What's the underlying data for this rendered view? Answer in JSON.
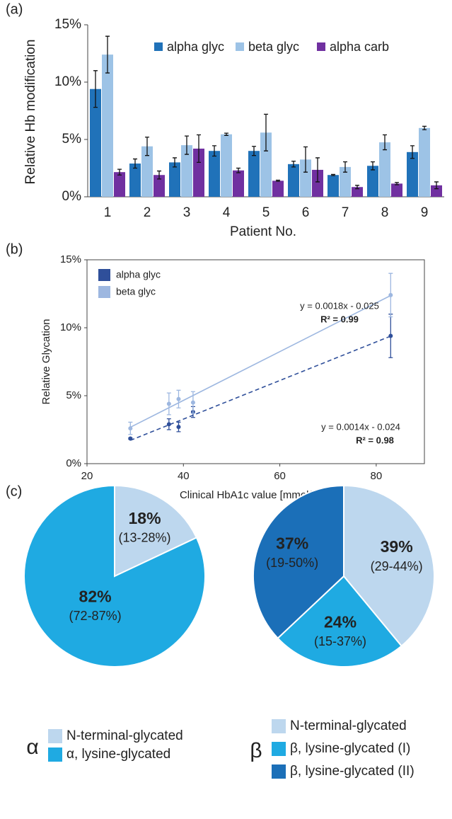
{
  "chart_data": [
    {
      "type": "bar",
      "panel": "(a)",
      "x_label": "Patient No.",
      "y_label": "Relative Hb modification",
      "categories": [
        "1",
        "2",
        "3",
        "4",
        "5",
        "6",
        "7",
        "8",
        "9"
      ],
      "series": [
        {
          "name": "alpha glyc",
          "color": "#2072b9",
          "values": [
            9.4,
            2.9,
            3.0,
            4.0,
            4.0,
            2.85,
            1.9,
            2.7,
            3.9
          ],
          "errors": [
            1.6,
            0.4,
            0.4,
            0.45,
            0.4,
            0.25,
            0.05,
            0.35,
            0.55
          ]
        },
        {
          "name": "beta glyc",
          "color": "#9dc3e6",
          "values": [
            12.4,
            4.4,
            4.5,
            5.45,
            5.6,
            3.25,
            2.6,
            4.75,
            6.0
          ],
          "errors": [
            1.6,
            0.8,
            0.8,
            0.1,
            1.6,
            1.1,
            0.45,
            0.65,
            0.15
          ]
        },
        {
          "name": "alpha carb",
          "color": "#7030a0",
          "values": [
            2.15,
            1.9,
            4.2,
            2.3,
            1.4,
            2.35,
            0.85,
            1.15,
            1.0
          ],
          "errors": [
            0.25,
            0.35,
            1.2,
            0.2,
            0.05,
            1.05,
            0.15,
            0.1,
            0.3
          ]
        }
      ],
      "ylim": [
        0,
        15
      ],
      "yticks": [
        {
          "value": 0,
          "label": "0%"
        },
        {
          "value": 5,
          "label": "5%"
        },
        {
          "value": 10,
          "label": "10%"
        },
        {
          "value": 15,
          "label": "15%"
        }
      ],
      "legend": "top-right"
    },
    {
      "type": "scatter",
      "panel": "(b)",
      "x_label": "Clinical HbA1c value [mmol/mol]",
      "y_label": "Relative Glycation",
      "series": [
        {
          "name": "alpha glyc",
          "color": "#2f4f9a",
          "line_style": "dashed",
          "x": [
            29,
            37,
            39,
            42,
            83
          ],
          "values": [
            1.85,
            2.9,
            2.7,
            3.8,
            9.4
          ],
          "errors": [
            0.05,
            0.4,
            0.35,
            0.4,
            1.6
          ],
          "trendline": {
            "equation": "y = 0.0014x - 0.024",
            "r2": "R² = 0.98"
          }
        },
        {
          "name": "beta glyc",
          "color": "#9db7e0",
          "line_style": "solid",
          "x": [
            29,
            37,
            39,
            42,
            83
          ],
          "values": [
            2.6,
            4.4,
            4.75,
            4.5,
            12.4
          ],
          "errors": [
            0.45,
            0.8,
            0.65,
            0.8,
            1.6
          ],
          "trendline": {
            "equation": "y = 0.0018x - 0.025",
            "r2": "R² = 0.99"
          }
        }
      ],
      "xlim": [
        20,
        90
      ],
      "xticks": [
        20,
        40,
        60,
        80
      ],
      "ylim": [
        0,
        15
      ],
      "yticks": [
        {
          "value": 0,
          "label": "0%"
        },
        {
          "value": 5,
          "label": "5%"
        },
        {
          "value": 10,
          "label": "10%"
        },
        {
          "value": 15,
          "label": "15%"
        }
      ],
      "legend": "top-left"
    },
    {
      "type": "pie",
      "panel": "(c)",
      "legend_title": "α",
      "categories": [
        "N-terminal-glycated",
        "α, lysine-glycated"
      ],
      "values": [
        18,
        82
      ],
      "value_labels": [
        "18%",
        "82%"
      ],
      "ranges": [
        "(13-28%)",
        "(72-87%)"
      ],
      "colors": [
        "#bdd7ee",
        "#1faae2"
      ]
    },
    {
      "type": "pie",
      "legend_title": "β",
      "categories": [
        "N-terminal-glycated",
        "β, lysine-glycated (I)",
        "β, lysine-glycated (II)"
      ],
      "values": [
        39,
        24,
        37
      ],
      "value_labels": [
        "39%",
        "24%",
        "37%"
      ],
      "ranges": [
        "(29-44%)",
        "(15-37%)",
        "(19-50%)"
      ],
      "colors": [
        "#bdd7ee",
        "#1faae2",
        "#1b6fb8"
      ]
    }
  ]
}
